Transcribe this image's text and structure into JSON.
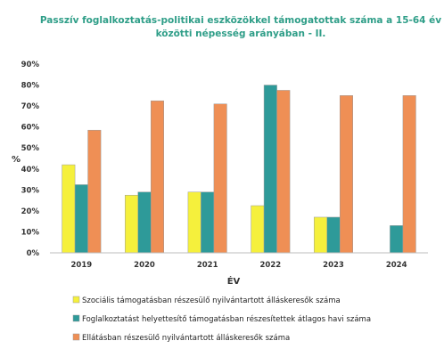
{
  "chart_data": {
    "type": "bar",
    "title_lines": [
      "Passzív foglalkoztatás-politikai eszközökkel támogatottak száma a 15-64 év",
      "közötti népesség  arányában - II."
    ],
    "xlabel": "ÉV",
    "ylabel": "%",
    "categories": [
      "2019",
      "2020",
      "2021",
      "2022",
      "2023",
      "2024"
    ],
    "ylim": [
      0,
      90
    ],
    "y_ticks": [
      "0%",
      "10%",
      "20%",
      "30%",
      "40%",
      "50%",
      "60%",
      "70%",
      "80%",
      "90%"
    ],
    "grid": false,
    "legend_position": "bottom",
    "series": [
      {
        "name": "Szociális támogatásban részesülő nyilvántartott álláskeresők száma",
        "color": "#f5f03c",
        "values": [
          42,
          27.5,
          29,
          22.5,
          17,
          null
        ]
      },
      {
        "name": "Foglalkoztatást helyettesítő támogatásban részesítettek átlagos havi száma",
        "color": "#2e9a99",
        "values": [
          32.5,
          29,
          29,
          80,
          17,
          13
        ]
      },
      {
        "name": "Ellátásban részesülő nyilvántartott álláskeresők száma",
        "color": "#ef8f55",
        "values": [
          58.5,
          72.5,
          71,
          77.5,
          75,
          75
        ]
      }
    ]
  }
}
